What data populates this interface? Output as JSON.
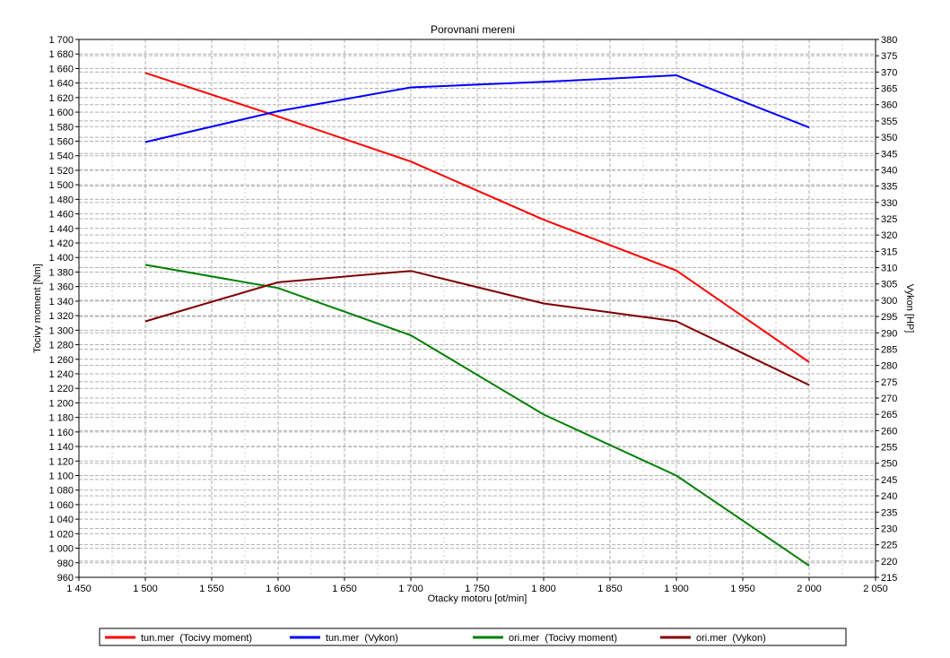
{
  "chart_data": {
    "type": "line",
    "title": "Porovnani mereni",
    "xlabel": "Otacky motoru [ot/min]",
    "ylabel_left": "Tocivy moment [Nm]",
    "ylabel_right": "Vykon [HP]",
    "xlim": [
      1450,
      2050
    ],
    "ylim_left": [
      960,
      1700
    ],
    "ylim_right": [
      215,
      380
    ],
    "x_ticks": [
      "1 450",
      "1 500",
      "1 550",
      "1 600",
      "1 650",
      "1 700",
      "1 750",
      "1 800",
      "1 850",
      "1 900",
      "1 950",
      "2 000",
      "2 050"
    ],
    "y_left_ticks": [
      "1 700",
      "1 680",
      "1 660",
      "1 640",
      "1 620",
      "1 600",
      "1 580",
      "1 560",
      "1 540",
      "1 520",
      "1 500",
      "1 480",
      "1 460",
      "1 440",
      "1 420",
      "1 400",
      "1 380",
      "1 360",
      "1 340",
      "1 320",
      "1 300",
      "1 280",
      "1 260",
      "1 240",
      "1 220",
      "1 200",
      "1 180",
      "1 160",
      "1 140",
      "1 120",
      "1 100",
      "1 080",
      "1 060",
      "1 040",
      "1 020",
      "1 000",
      "980",
      "960"
    ],
    "y_right_ticks": [
      "380",
      "375",
      "370",
      "365",
      "360",
      "355",
      "350",
      "345",
      "340",
      "335",
      "330",
      "325",
      "320",
      "315",
      "310",
      "305",
      "300",
      "295",
      "290",
      "285",
      "280",
      "275",
      "270",
      "265",
      "260",
      "255",
      "250",
      "245",
      "240",
      "235",
      "230",
      "225",
      "220",
      "215"
    ],
    "grid": true,
    "legend_position": "bottom",
    "series": [
      {
        "name": "tun.mer  (Tocivy moment)",
        "axis": "left",
        "color": "#ff0000",
        "x": [
          1500,
          1600,
          1700,
          1800,
          1900,
          2000
        ],
        "y": [
          1654,
          1594,
          1532,
          1452,
          1382,
          1256
        ]
      },
      {
        "name": "tun.mer  (Vykon)",
        "axis": "right",
        "color": "#0000ff",
        "x": [
          1500,
          1600,
          1700,
          1800,
          1900,
          2000
        ],
        "y": [
          348.5,
          358,
          365.3,
          367,
          369,
          353
        ]
      },
      {
        "name": "ori.mer  (Tocivy moment)",
        "axis": "left",
        "color": "#008000",
        "x": [
          1500,
          1600,
          1700,
          1800,
          1900,
          2000
        ],
        "y": [
          1390,
          1358,
          1293,
          1184,
          1100,
          976
        ]
      },
      {
        "name": "ori.mer  (Vykon)",
        "axis": "right",
        "color": "#800000",
        "x": [
          1500,
          1600,
          1700,
          1800,
          1900,
          2000
        ],
        "y": [
          293.5,
          305.5,
          309,
          299,
          293.5,
          274
        ]
      }
    ]
  }
}
